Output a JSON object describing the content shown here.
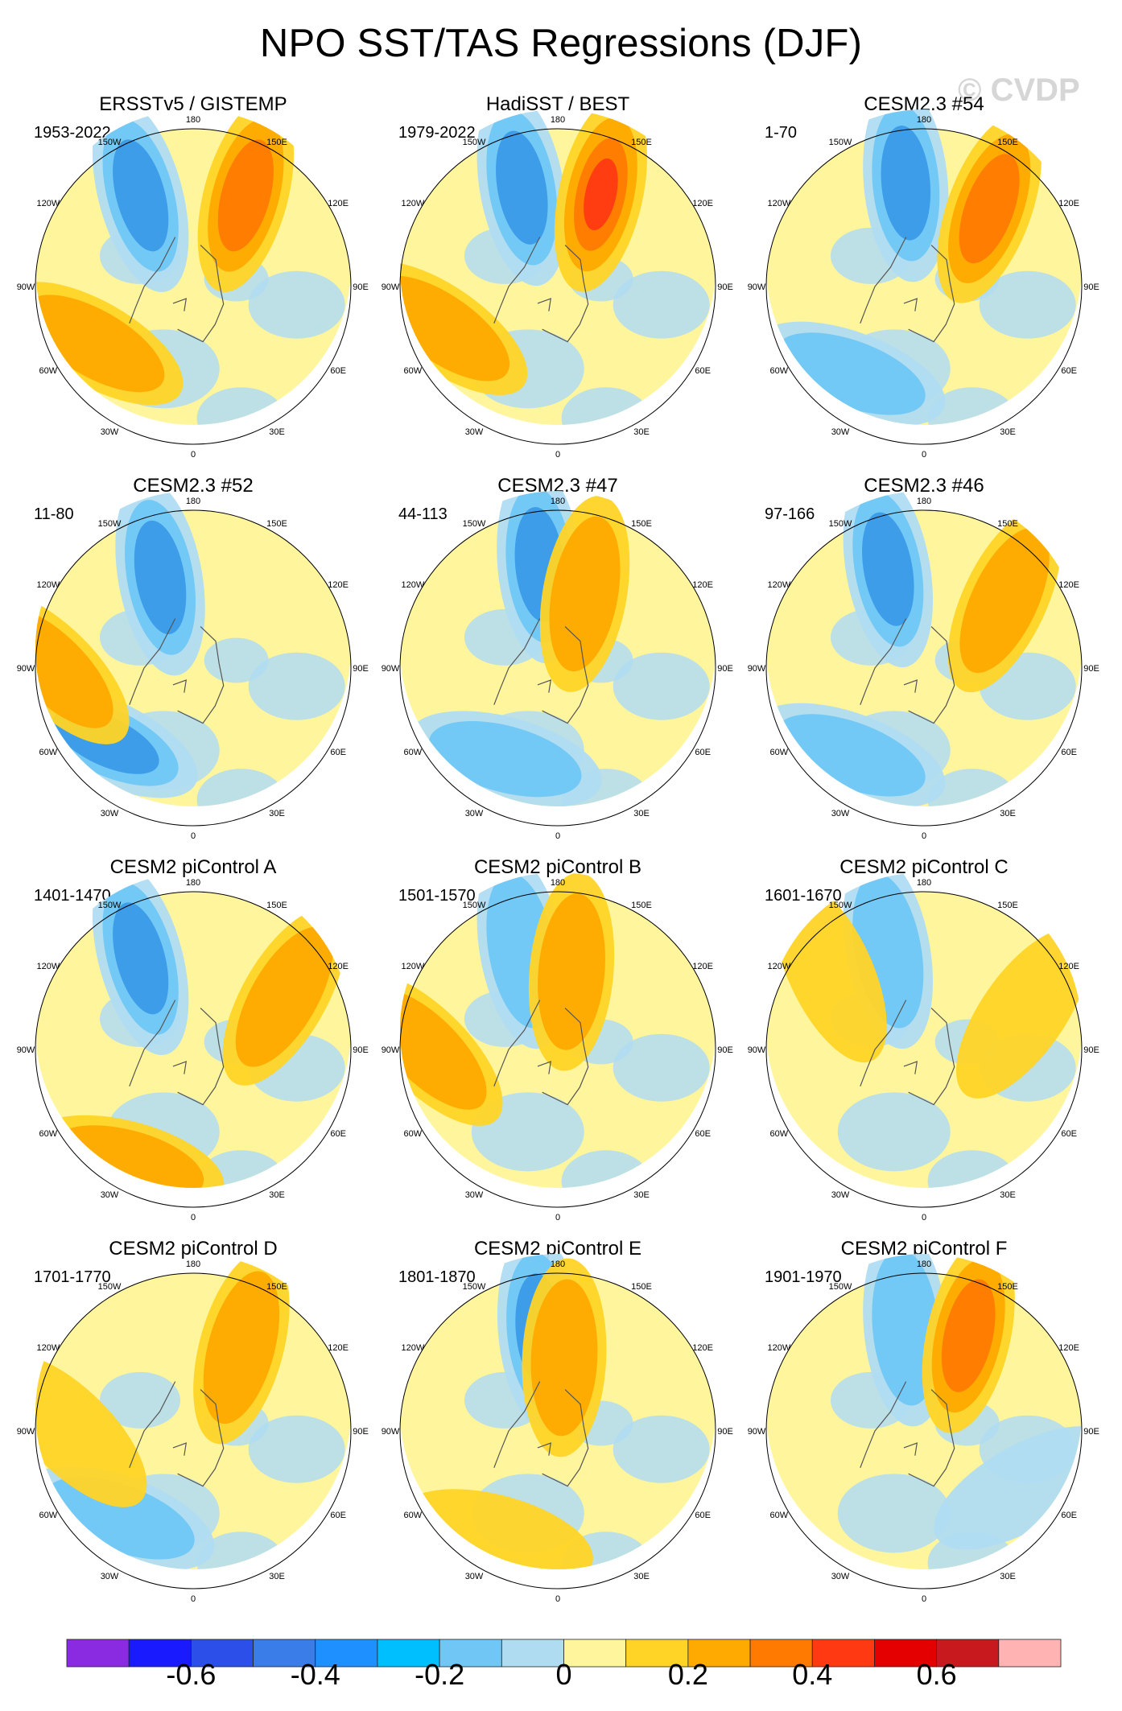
{
  "title": "NPO SST/TAS Regressions (DJF)",
  "watermark": "© CVDP",
  "compass": {
    "c180": "180",
    "w150": "150W",
    "e150": "150E",
    "w120": "120W",
    "e120": "120E",
    "w90": "90W",
    "e90": "90E",
    "w60": "60W",
    "e60": "60E",
    "w30": "30W",
    "e30": "30E",
    "c0": "0"
  },
  "panels": [
    {
      "title": "ERSSTv5 / GISTEMP",
      "years": "1953-2022",
      "pattern": [
        [
          -150,
          30,
          "neg",
          0.8
        ],
        [
          150,
          30,
          "pos",
          0.8
        ],
        [
          -60,
          25,
          "pos",
          0.5
        ]
      ]
    },
    {
      "title": "HadiSST / BEST",
      "years": "1979-2022",
      "pattern": [
        [
          -160,
          30,
          "neg",
          0.8
        ],
        [
          155,
          32,
          "pos",
          0.9
        ],
        [
          -70,
          20,
          "pos",
          0.5
        ]
      ]
    },
    {
      "title": "CESM2.3 #54",
      "years": "1-70",
      "pattern": [
        [
          -170,
          30,
          "neg",
          0.7
        ],
        [
          140,
          32,
          "pos",
          0.7
        ],
        [
          -40,
          25,
          "neg",
          0.6
        ]
      ]
    },
    {
      "title": "CESM2.3 #52",
      "years": "11-80",
      "pattern": [
        [
          -160,
          35,
          "neg",
          0.8
        ],
        [
          -50,
          25,
          "neg",
          0.7
        ],
        [
          -90,
          10,
          "pos",
          0.4
        ]
      ]
    },
    {
      "title": "CESM2.3 #47",
      "years": "44-113",
      "pattern": [
        [
          -170,
          30,
          "neg",
          0.7
        ],
        [
          160,
          45,
          "pos",
          0.5
        ],
        [
          -30,
          30,
          "neg",
          0.4
        ]
      ]
    },
    {
      "title": "CESM2.3 #46",
      "years": "97-166",
      "pattern": [
        [
          -160,
          30,
          "neg",
          0.7
        ],
        [
          130,
          30,
          "pos",
          0.6
        ],
        [
          -40,
          25,
          "neg",
          0.5
        ]
      ]
    },
    {
      "title": "CESM2 piControl A",
      "years": "1401-1470",
      "pattern": [
        [
          -150,
          30,
          "neg",
          0.7
        ],
        [
          -30,
          15,
          "pos",
          0.4
        ],
        [
          120,
          30,
          "pos",
          0.4
        ]
      ]
    },
    {
      "title": "CESM2 piControl B",
      "years": "1501-1570",
      "pattern": [
        [
          -160,
          30,
          "neg",
          0.6
        ],
        [
          170,
          45,
          "pos",
          0.5
        ],
        [
          -90,
          15,
          "pos",
          0.4
        ]
      ]
    },
    {
      "title": "CESM2 piControl C",
      "years": "1601-1670",
      "pattern": [
        [
          -160,
          30,
          "neg",
          0.5
        ],
        [
          -130,
          20,
          "pos",
          0.3
        ],
        [
          110,
          30,
          "pos",
          0.3
        ]
      ]
    },
    {
      "title": "CESM2 piControl D",
      "years": "1701-1770",
      "pattern": [
        [
          150,
          35,
          "pos",
          0.4
        ],
        [
          -40,
          25,
          "neg",
          0.4
        ],
        [
          -90,
          20,
          "pos",
          0.3
        ]
      ]
    },
    {
      "title": "CESM2 piControl E",
      "years": "1801-1870",
      "pattern": [
        [
          -170,
          32,
          "neg",
          0.7
        ],
        [
          175,
          48,
          "pos",
          0.5
        ],
        [
          -30,
          20,
          "pos",
          0.3
        ]
      ]
    },
    {
      "title": "CESM2 piControl F",
      "years": "1901-1970",
      "pattern": [
        [
          -170,
          30,
          "neg",
          0.6
        ],
        [
          155,
          30,
          "pos",
          0.8
        ],
        [
          60,
          25,
          "neg",
          0.3
        ]
      ]
    }
  ],
  "colorbar": {
    "colors": [
      "#8a2be2",
      "#1a1aff",
      "#2b4fe8",
      "#3a7de8",
      "#1e90ff",
      "#00bfff",
      "#70c7f5",
      "#b0dcf2",
      "#fff59d",
      "#ffd426",
      "#ffaa00",
      "#ff7a00",
      "#ff3a12",
      "#e50000",
      "#c8191e",
      "#ffb3b3"
    ],
    "labels": [
      {
        "text": "-0.6",
        "value": -0.6
      },
      {
        "text": "-0.4",
        "value": -0.4
      },
      {
        "text": "-0.2",
        "value": -0.2
      },
      {
        "text": "0",
        "value": 0
      },
      {
        "text": "0.2",
        "value": 0.2
      },
      {
        "text": "0.4",
        "value": 0.4
      },
      {
        "text": "0.6",
        "value": 0.6
      }
    ]
  }
}
